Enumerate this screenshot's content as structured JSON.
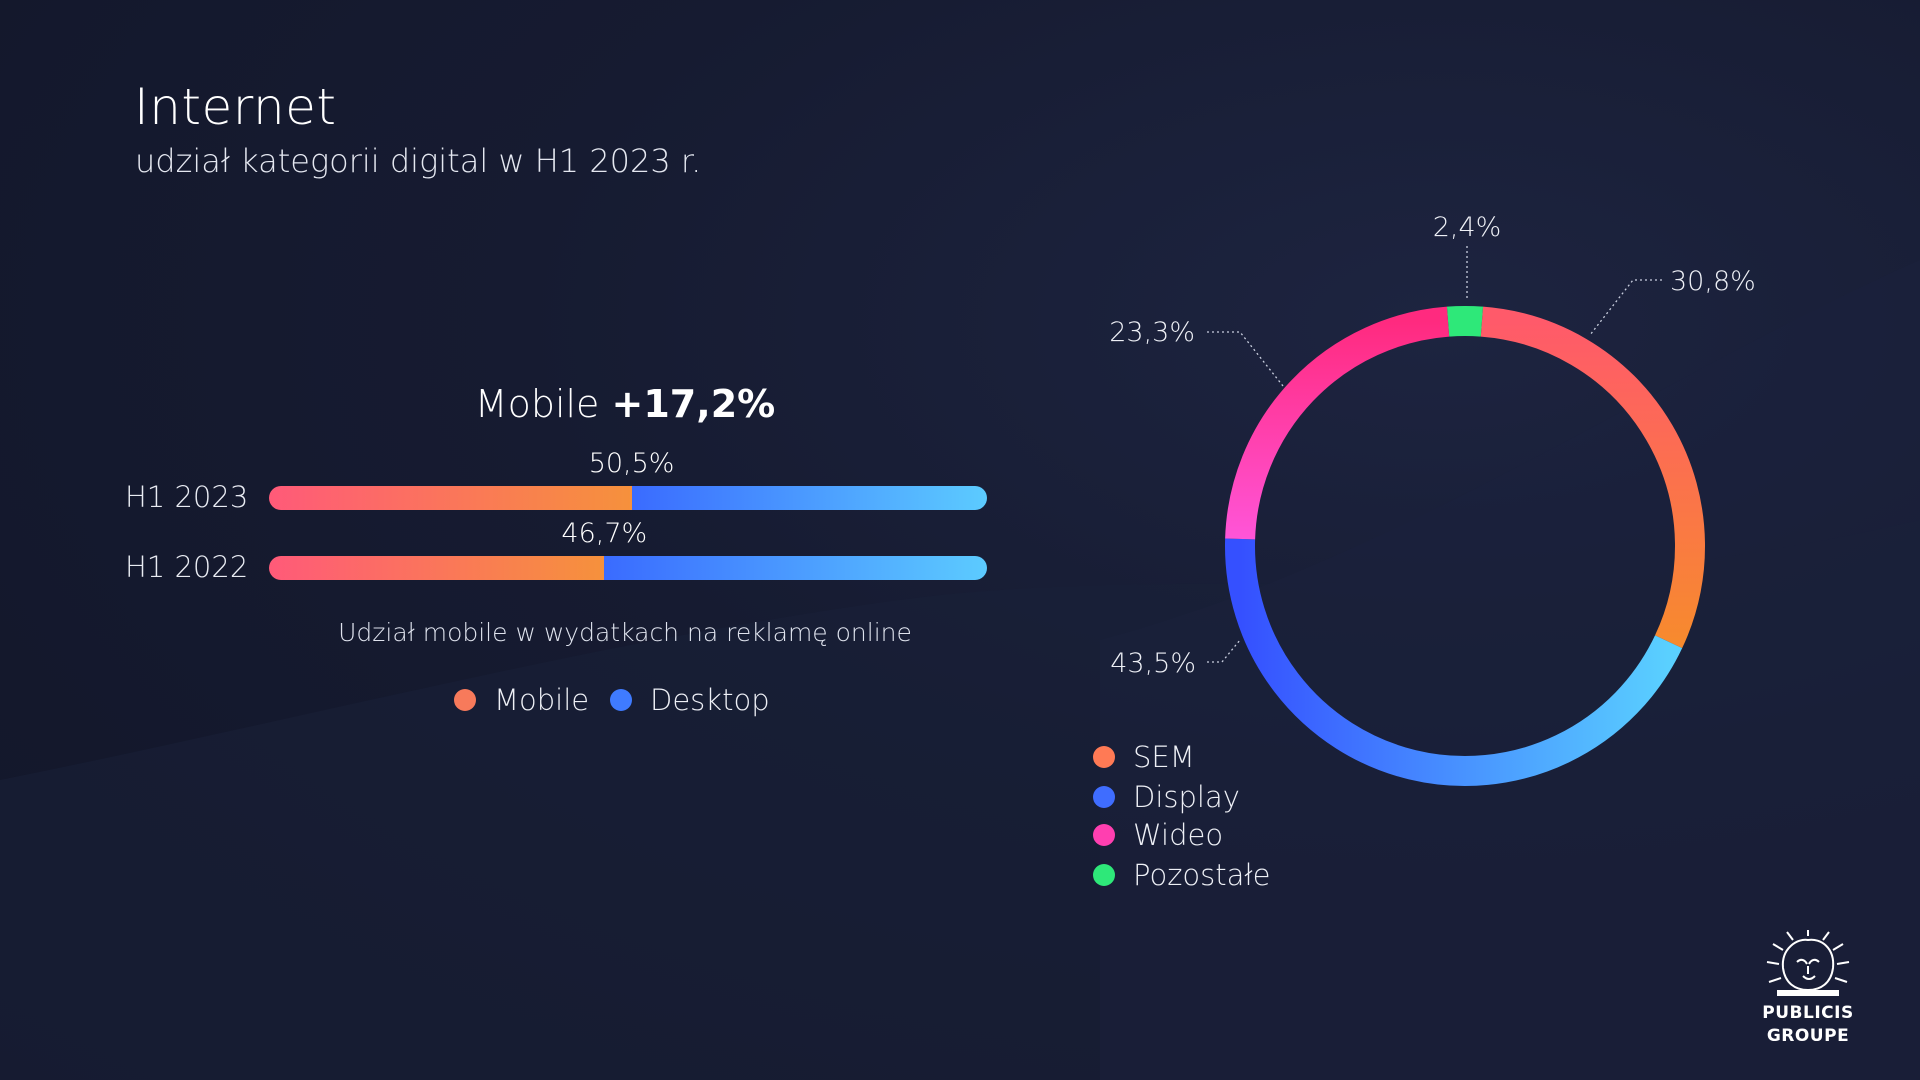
{
  "header": {
    "title": "Internet",
    "subtitle": "udział kategorii digital w H1 2023 r."
  },
  "chart_data": [
    {
      "type": "bar",
      "subtype": "stacked-100",
      "title_prefix": "Mobile",
      "title_value": "+17,2%",
      "categories": [
        "H1 2023",
        "H1 2022"
      ],
      "series": [
        {
          "name": "Mobile",
          "values": [
            50.5,
            46.7
          ],
          "color_start": "#ff5a79",
          "color_end": "#f6913c"
        },
        {
          "name": "Desktop",
          "values": [
            49.5,
            53.3
          ],
          "color_start": "#3a6bff",
          "color_end": "#5ccbff"
        }
      ],
      "value_labels": [
        "50,5%",
        "46,7%"
      ],
      "xlim": [
        0,
        100
      ],
      "caption": "Udział mobile w wydatkach na reklamę online",
      "legend": [
        {
          "label": "Mobile",
          "color": "#f77a5b"
        },
        {
          "label": "Desktop",
          "color": "#3f7bff"
        }
      ]
    },
    {
      "type": "pie",
      "subtype": "donut",
      "slices": [
        {
          "name": "Pozostałe",
          "value": 2.4,
          "label": "2,4%",
          "color": "#2ee879"
        },
        {
          "name": "SEM",
          "value": 30.8,
          "label": "30,8%",
          "color": "#ff6b5f"
        },
        {
          "name": "Display",
          "value": 43.5,
          "label": "43,5%",
          "color": "#3a5cff"
        },
        {
          "name": "Wideo",
          "value": 23.3,
          "label": "23,3%",
          "color": "#ff2f8e"
        }
      ],
      "legend": [
        {
          "label": "SEM",
          "color": "#ff7a55"
        },
        {
          "label": "Display",
          "color": "#3f6dff"
        },
        {
          "label": "Wideo",
          "color": "#ff3fb0"
        },
        {
          "label": "Pozostałe",
          "color": "#2ee879"
        }
      ],
      "legend_position": "bottom-left"
    }
  ],
  "logo": {
    "line1": "PUBLICIS",
    "line2": "GROUPE"
  }
}
